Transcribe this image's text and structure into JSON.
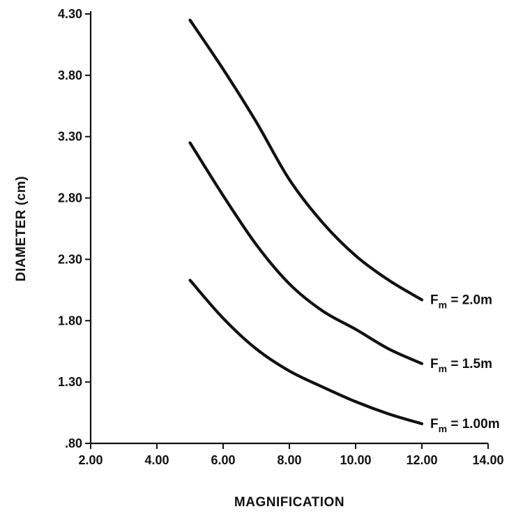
{
  "chart_data": {
    "type": "line",
    "title": "",
    "xlabel": "MAGNIFICATION",
    "ylabel": "DIAMETER (cm)",
    "xlim": [
      2.0,
      14.0
    ],
    "ylim": [
      0.8,
      4.3
    ],
    "xticks": [
      "2.00",
      "4.00",
      "6.00",
      "8.00",
      "10.00",
      "12.00",
      "14.00"
    ],
    "yticks": [
      ".80",
      "1.30",
      "1.80",
      "2.30",
      "2.80",
      "3.30",
      "3.80",
      "4.30"
    ],
    "grid": false,
    "legend": "inline-right",
    "series": [
      {
        "name": "F = 2.0m",
        "label_main": "F",
        "label_sub": "m",
        "label_rest": " = 2.0m",
        "points": [
          [
            5.0,
            4.25
          ],
          [
            6.0,
            3.85
          ],
          [
            7.0,
            3.42
          ],
          [
            8.0,
            2.95
          ],
          [
            9.0,
            2.6
          ],
          [
            10.0,
            2.33
          ],
          [
            11.0,
            2.13
          ],
          [
            12.0,
            1.97
          ]
        ]
      },
      {
        "name": "F = 1.5m",
        "label_main": "F",
        "label_sub": "m",
        "label_rest": " = 1.5m",
        "points": [
          [
            5.0,
            3.25
          ],
          [
            6.0,
            2.82
          ],
          [
            7.0,
            2.42
          ],
          [
            8.0,
            2.1
          ],
          [
            9.0,
            1.88
          ],
          [
            10.0,
            1.73
          ],
          [
            11.0,
            1.57
          ],
          [
            12.0,
            1.45
          ]
        ]
      },
      {
        "name": "F = 1.00m",
        "label_main": "F",
        "label_sub": "m",
        "label_rest": " = 1.00m",
        "points": [
          [
            5.0,
            2.13
          ],
          [
            6.0,
            1.82
          ],
          [
            7.0,
            1.57
          ],
          [
            8.0,
            1.39
          ],
          [
            9.0,
            1.26
          ],
          [
            10.0,
            1.14
          ],
          [
            11.0,
            1.04
          ],
          [
            12.0,
            0.96
          ]
        ]
      }
    ]
  }
}
